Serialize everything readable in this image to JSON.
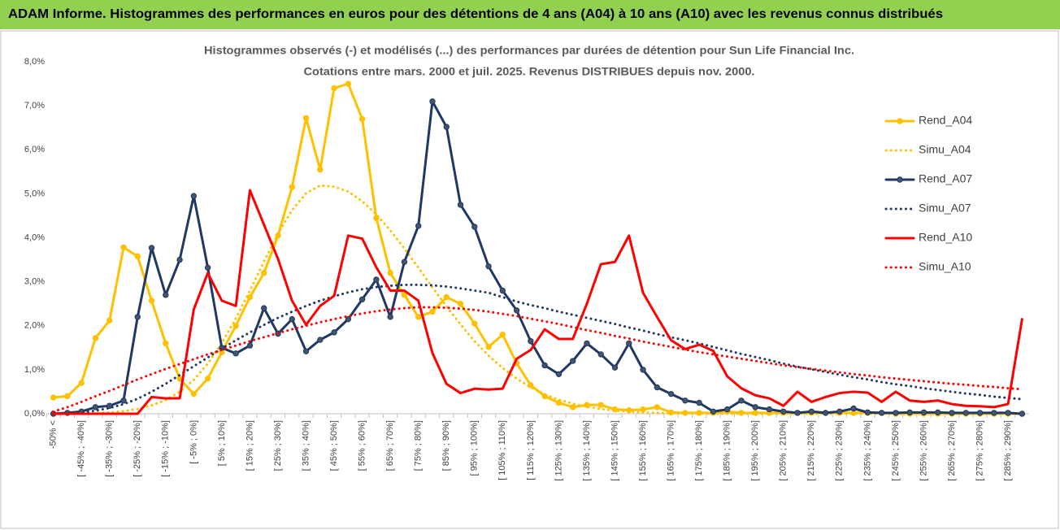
{
  "chart_data": {
    "type": "line",
    "title": "ADAM Informe. Histogrammes des performances en euros pour des détentions de 4 ans (A04) à 10 ans (A10) avec les revenus connus distribués",
    "subtitle": [
      "Histogrammes observés (-) et modélisés (...) des performances par durées de détention pour Sun Life Financial Inc.",
      "Cotations entre mars. 2000 et juil. 2025.  Revenus DISTRIBUES depuis nov. 2000."
    ],
    "categories": [
      "-50% <",
      null,
      "[ -45% ; -40%]",
      null,
      "[ -35% ; -30%]",
      null,
      "[ -25% ; -20%]",
      null,
      "[ -15% ; -10%]",
      null,
      "[ -5% ; 0%]",
      null,
      "[ 5% ; 10%]",
      null,
      "[ 15% ; 20%]",
      null,
      "[ 25% ; 30%]",
      null,
      "[ 35% ; 40%]",
      null,
      "[ 45% ; 50%]",
      null,
      "[ 55% ; 60%]",
      null,
      "[ 65% ; 70%]",
      null,
      "[ 75% ; 80%]",
      null,
      "[ 85% ; 90%]",
      null,
      "[ 95% ; 100%]",
      null,
      "[ 105% ; 110%]",
      null,
      "[ 115% ; 120%]",
      null,
      "[ 125% ; 130%]",
      null,
      "[ 135% ; 140%]",
      null,
      "[ 145% ; 150%]",
      null,
      "[ 155% ; 160%]",
      null,
      "[ 165% ; 170%]",
      null,
      "[ 175% ; 180%]",
      null,
      "[ 185% ; 190%]",
      null,
      "[ 195% ; 200%]",
      null,
      "[ 205% ; 210%]",
      null,
      "[ 215% ; 220%]",
      null,
      "[ 225% ; 230%]",
      null,
      "[ 235% ; 240%]",
      null,
      "[ 245% ; 250%]",
      null,
      "[ 255% ; 260%]",
      null,
      "[ 265% ; 270%]",
      null,
      "[ 275% ; 280%]",
      null,
      "[ 285% ; 290%]",
      null
    ],
    "series": [
      {
        "name": "Rend_A04",
        "color": "#ffc000",
        "style": "solid",
        "marker": true,
        "values": [
          0.37,
          0.4,
          0.7,
          1.72,
          2.12,
          3.78,
          3.58,
          2.57,
          1.6,
          0.8,
          0.45,
          0.8,
          1.4,
          2,
          2.65,
          3.2,
          4.05,
          5.15,
          6.72,
          5.55,
          7.4,
          7.5,
          6.7,
          4.45,
          3.2,
          2.7,
          2.2,
          2.32,
          2.65,
          2.5,
          2.05,
          1.52,
          1.8,
          1.15,
          0.65,
          0.4,
          0.25,
          0.15,
          0.2,
          0.2,
          0.1,
          0.08,
          0.1,
          0.15,
          0.03,
          0.02,
          0.02,
          0.02,
          0.05,
          0.02,
          0.02,
          0.02,
          0.02,
          0.02,
          0.02,
          0.02,
          0.02,
          0.02,
          0.02,
          0.02,
          0,
          0,
          0,
          0,
          0,
          0,
          0,
          0,
          0,
          0
        ]
      },
      {
        "name": "Simu_A04",
        "color": "#ffc000",
        "style": "dotted",
        "marker": false,
        "values": [
          0,
          0,
          0.01,
          0.02,
          0.03,
          0.06,
          0.11,
          0.19,
          0.31,
          0.5,
          0.77,
          1.14,
          1.61,
          2.17,
          2.8,
          3.46,
          4.09,
          4.63,
          5.01,
          5.19,
          5.16,
          5.05,
          4.83,
          4.53,
          4.17,
          3.76,
          3.32,
          2.87,
          2.44,
          2.03,
          1.65,
          1.32,
          1.04,
          0.8,
          0.6,
          0.44,
          0.32,
          0.23,
          0.16,
          0.11,
          0.07,
          0.05,
          0.03,
          0.02,
          0.01,
          0.01,
          0,
          0,
          0,
          0,
          0,
          0,
          0,
          0,
          0,
          0,
          0,
          0,
          0,
          0,
          0,
          0,
          0,
          0,
          0,
          0,
          0,
          0,
          0,
          0
        ]
      },
      {
        "name": "Rend_A07",
        "color": "#1f3864",
        "style": "solid",
        "marker": true,
        "values": [
          0,
          0.02,
          0.05,
          0.15,
          0.18,
          0.3,
          2.2,
          3.77,
          2.7,
          3.5,
          4.95,
          3.32,
          1.5,
          1.37,
          1.55,
          2.4,
          1.82,
          2.15,
          1.42,
          1.68,
          1.85,
          2.15,
          2.6,
          3.05,
          2.2,
          3.45,
          4.27,
          7.1,
          6.52,
          4.75,
          4.25,
          3.35,
          2.8,
          2.35,
          1.65,
          1.1,
          0.9,
          1.2,
          1.6,
          1.35,
          1.05,
          1.6,
          1,
          0.6,
          0.45,
          0.3,
          0.25,
          0.05,
          0.1,
          0.3,
          0.15,
          0.1,
          0.05,
          0.02,
          0.05,
          0.02,
          0.05,
          0.12,
          0.03,
          0.02,
          0.02,
          0.03,
          0.03,
          0.03,
          0.02,
          0.02,
          0.02,
          0.02,
          0.02,
          0
        ]
      },
      {
        "name": "Simu_A07",
        "color": "#1f3864",
        "style": "dotted",
        "marker": false,
        "values": [
          0,
          0.01,
          0.03,
          0.07,
          0.13,
          0.22,
          0.34,
          0.5,
          0.68,
          0.88,
          1.08,
          1.28,
          1.48,
          1.67,
          1.85,
          2.02,
          2.18,
          2.32,
          2.45,
          2.57,
          2.67,
          2.76,
          2.83,
          2.88,
          2.91,
          2.93,
          2.93,
          2.92,
          2.89,
          2.85,
          2.8,
          2.75,
          2.65,
          2.55,
          2.47,
          2.4,
          2.32,
          2.25,
          2.18,
          2.11,
          2.04,
          1.96,
          1.89,
          1.81,
          1.74,
          1.67,
          1.6,
          1.52,
          1.44,
          1.36,
          1.29,
          1.22,
          1.14,
          1.07,
          1.01,
          0.95,
          0.89,
          0.83,
          0.78,
          0.72,
          0.67,
          0.63,
          0.58,
          0.54,
          0.5,
          0.46,
          0.43,
          0.39,
          0.36,
          0.33
        ]
      },
      {
        "name": "Rend_A10",
        "color": "#ff0000",
        "style": "solid",
        "marker": false,
        "values": [
          0,
          0,
          0,
          0,
          0,
          0,
          0,
          0.38,
          0.35,
          0.35,
          2.37,
          3.2,
          2.57,
          2.45,
          5.08,
          4.3,
          3.52,
          2.57,
          2.02,
          2.45,
          2.68,
          4.05,
          3.98,
          3.33,
          2.8,
          2.8,
          2.57,
          1.38,
          0.68,
          0.47,
          0.57,
          0.55,
          0.57,
          1.25,
          1.45,
          1.92,
          1.7,
          1.7,
          2.5,
          3.4,
          3.45,
          4.05,
          2.75,
          2.2,
          1.67,
          1.47,
          1.57,
          1.43,
          0.85,
          0.58,
          0.42,
          0.35,
          0.18,
          0.5,
          0.27,
          0.38,
          0.47,
          0.5,
          0.48,
          0.27,
          0.5,
          0.3,
          0.27,
          0.3,
          0.22,
          0.18,
          0.17,
          0.15,
          0.22,
          2.15
        ]
      },
      {
        "name": "Simu_A10",
        "color": "#ff0000",
        "style": "dotted",
        "marker": false,
        "values": [
          0.05,
          0.15,
          0.27,
          0.4,
          0.52,
          0.65,
          0.78,
          0.9,
          1.02,
          1.13,
          1.24,
          1.35,
          1.45,
          1.55,
          1.65,
          1.74,
          1.83,
          1.92,
          2,
          2.08,
          2.15,
          2.22,
          2.28,
          2.33,
          2.37,
          2.4,
          2.42,
          2.42,
          2.41,
          2.39,
          2.36,
          2.32,
          2.27,
          2.22,
          2.16,
          2.1,
          2.04,
          1.97,
          1.9,
          1.84,
          1.77,
          1.71,
          1.64,
          1.58,
          1.52,
          1.46,
          1.4,
          1.35,
          1.3,
          1.25,
          1.2,
          1.15,
          1.1,
          1.06,
          1.02,
          0.98,
          0.94,
          0.9,
          0.87,
          0.83,
          0.8,
          0.77,
          0.74,
          0.71,
          0.68,
          0.66,
          0.63,
          0.61,
          0.58,
          0.56
        ]
      }
    ],
    "ylim": [
      0,
      8
    ],
    "yticks": [
      {
        "value": 0,
        "label": "0,0%"
      },
      {
        "value": 1,
        "label": "1,0%"
      },
      {
        "value": 2,
        "label": "2,0%"
      },
      {
        "value": 3,
        "label": "3,0%"
      },
      {
        "value": 4,
        "label": "4,0%"
      },
      {
        "value": 5,
        "label": "5,0%"
      },
      {
        "value": 6,
        "label": "6,0%"
      },
      {
        "value": 7,
        "label": "7,0%"
      },
      {
        "value": 8,
        "label": "8,0%"
      }
    ],
    "grid": false,
    "legend": "right"
  }
}
